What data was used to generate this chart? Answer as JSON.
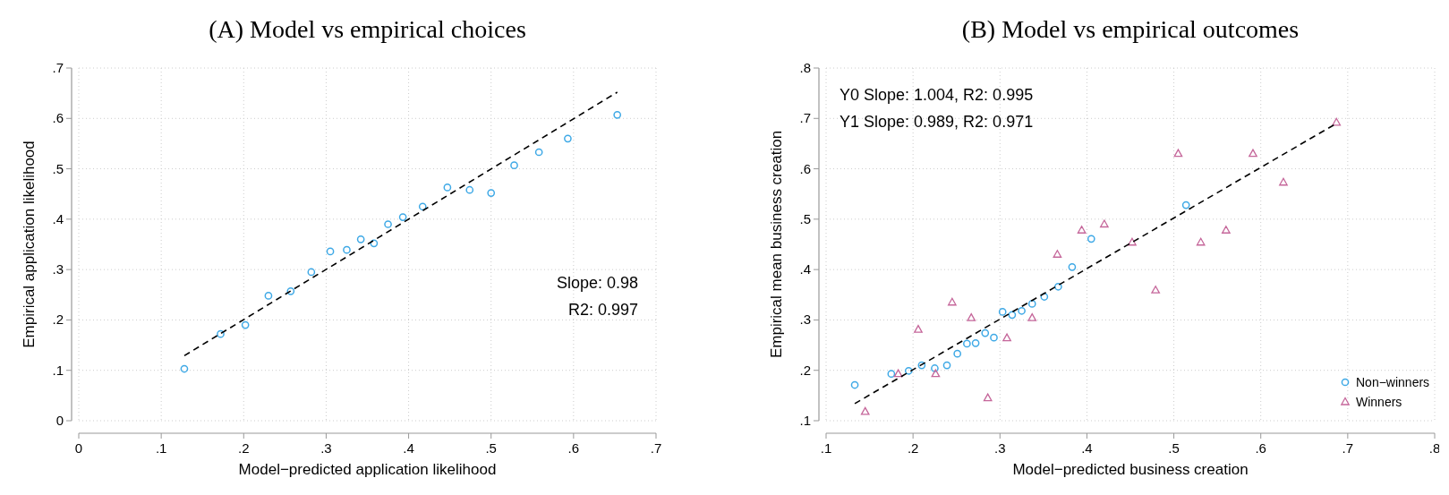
{
  "chart_data": [
    {
      "type": "scatter",
      "title": "(A) Model vs empirical choices",
      "xlabel": "Model−predicted application likelihood",
      "ylabel": "Empirical application likelihood",
      "xlim": [
        0,
        0.7
      ],
      "ylim": [
        0,
        0.7
      ],
      "xticks": [
        0,
        {
          "value": 0.1,
          "label": ".1"
        },
        {
          "value": 0.2,
          "label": ".2"
        },
        {
          "value": 0.3,
          "label": ".3"
        },
        {
          "value": 0.4,
          "label": ".4"
        },
        {
          "value": 0.5,
          "label": ".5"
        },
        {
          "value": 0.6,
          "label": ".6"
        },
        {
          "value": 0.7,
          "label": ".7"
        }
      ],
      "yticks": [
        0,
        {
          "value": 0.1,
          "label": ".1"
        },
        {
          "value": 0.2,
          "label": ".2"
        },
        {
          "value": 0.3,
          "label": ".3"
        },
        {
          "value": 0.4,
          "label": ".4"
        },
        {
          "value": 0.5,
          "label": ".5"
        },
        {
          "value": 0.6,
          "label": ".6"
        },
        {
          "value": 0.7,
          "label": ".7"
        }
      ],
      "grid": true,
      "legend": false,
      "annotations": [
        "Slope: 0.98",
        "R2: 0.997"
      ],
      "series": [
        {
          "marker": "circle",
          "color": "#3fa9e6",
          "x": [
            0.128,
            0.172,
            0.202,
            0.23,
            0.257,
            0.282,
            0.305,
            0.325,
            0.342,
            0.358,
            0.375,
            0.393,
            0.417,
            0.447,
            0.474,
            0.5,
            0.528,
            0.558,
            0.593,
            0.653
          ],
          "values": [
            0.103,
            0.172,
            0.19,
            0.248,
            0.257,
            0.295,
            0.336,
            0.339,
            0.36,
            0.352,
            0.39,
            0.404,
            0.425,
            0.463,
            0.458,
            0.452,
            0.507,
            0.533,
            0.56,
            0.607
          ]
        },
        {
          "type": "line",
          "line_style": "dashed",
          "color": "#000000",
          "x": [
            0.128,
            0.653
          ],
          "values": [
            0.129,
            0.652
          ]
        }
      ]
    },
    {
      "type": "scatter",
      "title": "(B) Model vs empirical outcomes",
      "xlabel": "Model−predicted business creation",
      "ylabel": "Empirical mean business creation",
      "xlim": [
        0.1,
        0.8
      ],
      "ylim": [
        0.1,
        0.8
      ],
      "xticks": [
        {
          "value": 0.1,
          "label": ".1"
        },
        {
          "value": 0.2,
          "label": ".2"
        },
        {
          "value": 0.3,
          "label": ".3"
        },
        {
          "value": 0.4,
          "label": ".4"
        },
        {
          "value": 0.5,
          "label": ".5"
        },
        {
          "value": 0.6,
          "label": ".6"
        },
        {
          "value": 0.7,
          "label": ".7"
        },
        {
          "value": 0.8,
          "label": ".8"
        }
      ],
      "yticks": [
        {
          "value": 0.1,
          "label": ".1"
        },
        {
          "value": 0.2,
          "label": ".2"
        },
        {
          "value": 0.3,
          "label": ".3"
        },
        {
          "value": 0.4,
          "label": ".4"
        },
        {
          "value": 0.5,
          "label": ".5"
        },
        {
          "value": 0.6,
          "label": ".6"
        },
        {
          "value": 0.7,
          "label": ".7"
        },
        {
          "value": 0.8,
          "label": ".8"
        }
      ],
      "grid": true,
      "legend": "bottom right",
      "annotations": [
        "Y0 Slope: 1.004, R2: 0.995",
        "Y1 Slope: 0.989, R2: 0.971"
      ],
      "series": [
        {
          "name": "Non−winners",
          "marker": "circle",
          "color": "#3fa9e6",
          "x": [
            0.133,
            0.175,
            0.195,
            0.21,
            0.225,
            0.239,
            0.251,
            0.262,
            0.272,
            0.283,
            0.293,
            0.303,
            0.314,
            0.325,
            0.337,
            0.351,
            0.367,
            0.383,
            0.405,
            0.514
          ],
          "values": [
            0.171,
            0.193,
            0.199,
            0.21,
            0.204,
            0.21,
            0.233,
            0.253,
            0.254,
            0.274,
            0.265,
            0.316,
            0.31,
            0.318,
            0.332,
            0.346,
            0.366,
            0.405,
            0.461,
            0.528
          ]
        },
        {
          "name": "Winners",
          "marker": "triangle",
          "color": "#c5669a",
          "x": [
            0.145,
            0.183,
            0.206,
            0.226,
            0.245,
            0.267,
            0.286,
            0.308,
            0.337,
            0.366,
            0.394,
            0.42,
            0.452,
            0.479,
            0.505,
            0.531,
            0.56,
            0.591,
            0.626,
            0.687
          ],
          "values": [
            0.118,
            0.193,
            0.281,
            0.193,
            0.335,
            0.304,
            0.145,
            0.264,
            0.304,
            0.43,
            0.478,
            0.49,
            0.454,
            0.359,
            0.63,
            0.454,
            0.478,
            0.63,
            0.573,
            0.692
          ]
        },
        {
          "type": "line",
          "line_style": "dashed",
          "color": "#000000",
          "x": [
            0.133,
            0.687
          ],
          "values": [
            0.134,
            0.69
          ]
        }
      ]
    }
  ]
}
